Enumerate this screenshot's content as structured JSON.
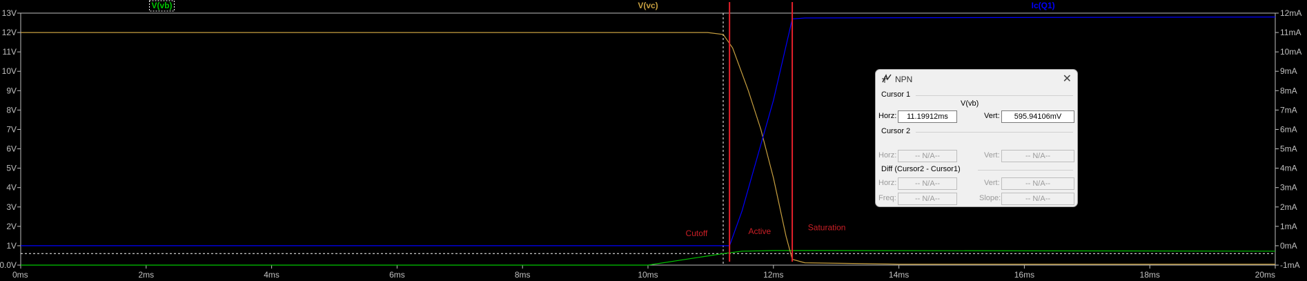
{
  "chart_data": {
    "type": "line",
    "x_ticks": [
      "0ms",
      "2ms",
      "4ms",
      "6ms",
      "8ms",
      "10ms",
      "12ms",
      "14ms",
      "16ms",
      "18ms",
      "20ms"
    ],
    "y_left_ticks": [
      "0.0V",
      "1V",
      "2V",
      "3V",
      "4V",
      "5V",
      "6V",
      "7V",
      "8V",
      "9V",
      "10V",
      "11V",
      "12V",
      "13V"
    ],
    "y_right_ticks": [
      "-1mA",
      "0mA",
      "1mA",
      "2mA",
      "3mA",
      "4mA",
      "5mA",
      "6mA",
      "7mA",
      "8mA",
      "9mA",
      "10mA",
      "11mA",
      "12mA"
    ],
    "xlim": [
      0,
      20
    ],
    "ylim_left": [
      0,
      13
    ],
    "ylim_right": [
      -1,
      12
    ],
    "series": [
      {
        "name": "V(vb)",
        "color": "#00c800",
        "axis": "left",
        "x": [
          0,
          10,
          11.2,
          11.5,
          12,
          13,
          20
        ],
        "y": [
          0,
          0,
          0.596,
          0.72,
          0.75,
          0.75,
          0.72
        ]
      },
      {
        "name": "V(vc)",
        "color": "#c8a040",
        "axis": "left",
        "x": [
          0,
          10.95,
          11.2,
          11.35,
          11.6,
          11.8,
          12.0,
          12.2,
          12.3,
          12.5,
          14,
          20
        ],
        "y": [
          12,
          12,
          11.9,
          11.2,
          9.0,
          7.0,
          4.5,
          1.5,
          0.3,
          0.12,
          0.05,
          0.05
        ]
      },
      {
        "name": "Ic(Q1)",
        "color": "#0000ff",
        "axis": "right",
        "x": [
          0,
          11.3,
          11.5,
          12.0,
          12.3,
          12.5,
          20
        ],
        "y": [
          0,
          0,
          1.8,
          7.5,
          11.7,
          11.75,
          11.8
        ]
      }
    ],
    "cursor_x": 11.19912,
    "cursor_y": 0.59594106,
    "markers": [
      11.3,
      12.3
    ],
    "annotations": [
      {
        "text": "Cutoff",
        "x": 10.95,
        "y": 1.5
      },
      {
        "text": "Active",
        "x": 11.6,
        "y": 1.6
      },
      {
        "text": "Saturation",
        "x": 12.55,
        "y": 1.8
      }
    ]
  },
  "colors": {
    "background": "#000000",
    "axis": "#c0c0c0",
    "marker": "#e6212b",
    "annotation": "#cc1f26"
  },
  "dialog": {
    "title": "NPN",
    "icon": "probe-cursor-icon",
    "cursor1": {
      "section": "Cursor 1",
      "trace": "V(vb)",
      "horz_label": "Horz:",
      "horz_value": "11.19912ms",
      "vert_label": "Vert:",
      "vert_value": "595.94106mV"
    },
    "cursor2": {
      "section": "Cursor 2",
      "horz_label": "Horz:",
      "horz_value": "-- N/A--",
      "vert_label": "Vert:",
      "vert_value": "-- N/A--"
    },
    "diff": {
      "section": "Diff (Cursor2 - Cursor1)",
      "horz_label": "Horz:",
      "horz_value": "-- N/A--",
      "vert_label": "Vert:",
      "vert_value": "-- N/A--",
      "freq_label": "Freq:",
      "freq_value": "-- N/A--",
      "slope_label": "Slope:",
      "slope_value": "-- N/A--"
    }
  }
}
